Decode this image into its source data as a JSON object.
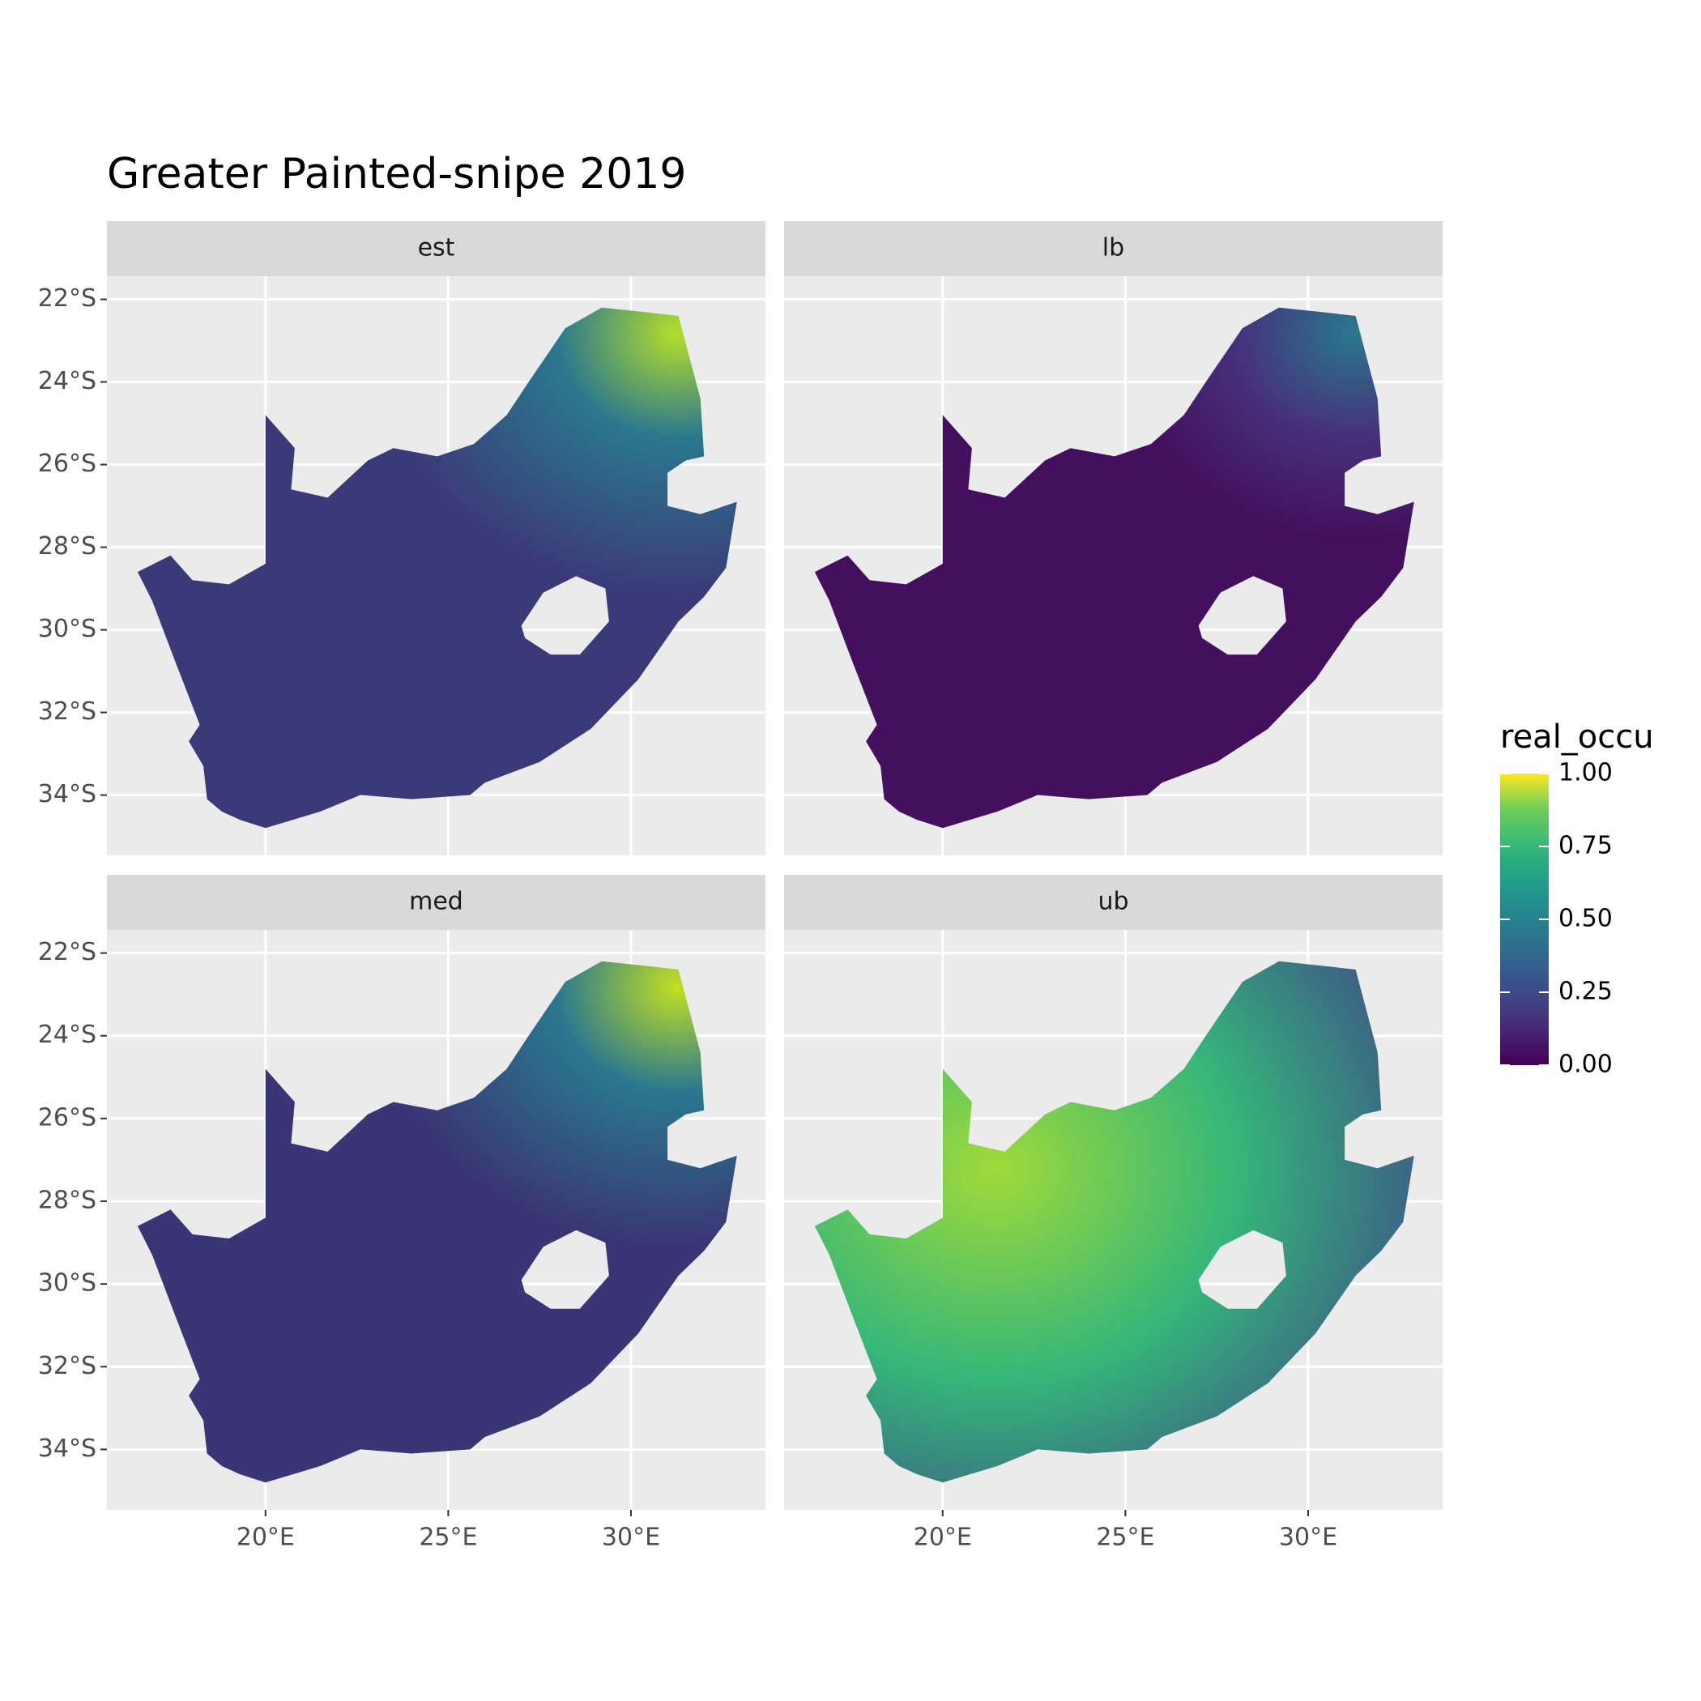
{
  "chart_data": {
    "type": "map",
    "title": "Greater Painted-snipe 2019",
    "facets": [
      "est",
      "lb",
      "med",
      "ub"
    ],
    "xlim": [
      15.66,
      33.68
    ],
    "ylim": [
      -35.46,
      -21.44
    ],
    "xticks": [
      {
        "value": 20,
        "label": "20°E"
      },
      {
        "value": 25,
        "label": "25°E"
      },
      {
        "value": 30,
        "label": "30°E"
      }
    ],
    "yticks": [
      {
        "value": -22,
        "label": "22°S"
      },
      {
        "value": -24,
        "label": "24°S"
      },
      {
        "value": -26,
        "label": "26°S"
      },
      {
        "value": -28,
        "label": "28°S"
      },
      {
        "value": -30,
        "label": "30°S"
      },
      {
        "value": -32,
        "label": "32°S"
      },
      {
        "value": -34,
        "label": "34°S"
      }
    ],
    "legend": {
      "title": "real_occu",
      "lim": [
        0,
        1
      ],
      "ticks": [
        {
          "value": 0,
          "label": "0.00"
        },
        0.25,
        {
          "value": 0.5,
          "label": "0.50"
        },
        0.75,
        {
          "value": 1,
          "label": "1.00"
        }
      ]
    }
  }
}
